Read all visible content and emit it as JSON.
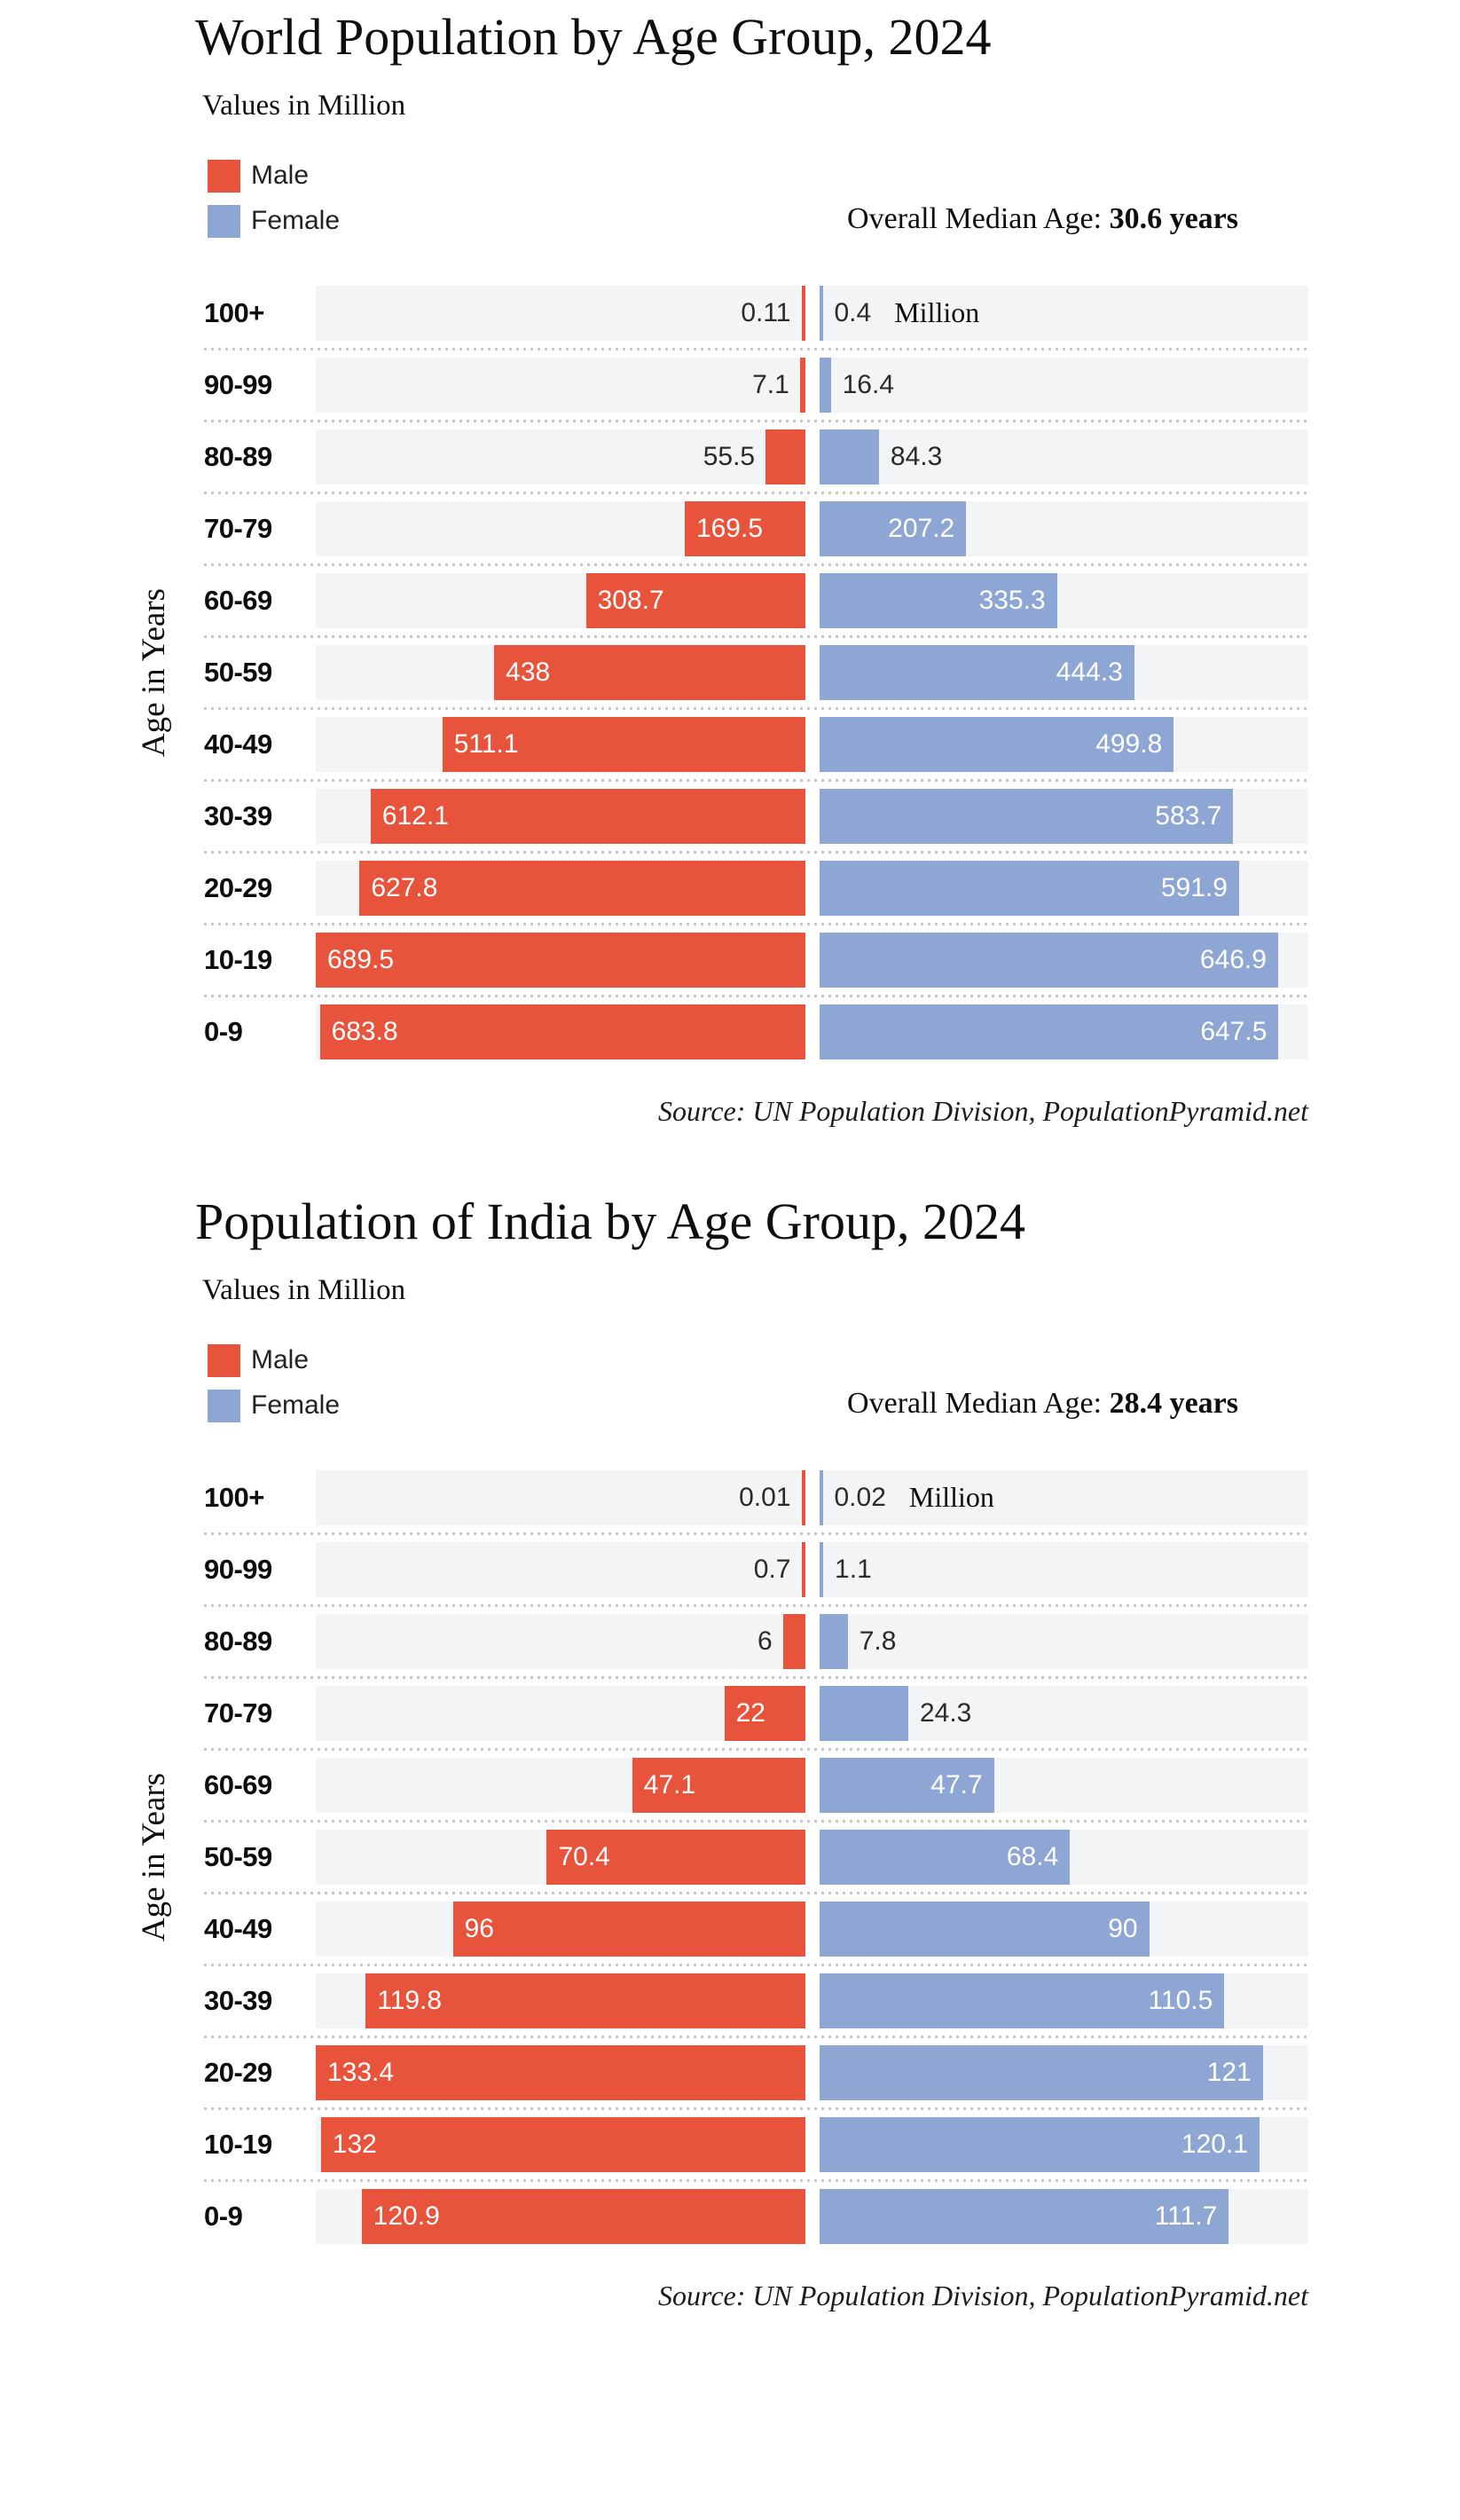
{
  "chart_data": [
    {
      "type": "bar",
      "variant": "population-pyramid",
      "title": "World Population by Age Group, 2024",
      "subtitle": "Values in Million",
      "ylabel": "Age in Years",
      "unit": "Million",
      "median_prefix": "Overall Median Age: ",
      "median_value": "30.6 years",
      "source": "Source: UN Population Division, PopulationPyramid.net",
      "legend_position": "top-left",
      "grid": false,
      "xmax": 689.5,
      "track_color": "#f3f4f5",
      "categories": [
        "100+",
        "90-99",
        "80-89",
        "70-79",
        "60-69",
        "50-59",
        "40-49",
        "30-39",
        "20-29",
        "10-19",
        "0-9"
      ],
      "series": [
        {
          "name": "Male",
          "color": "#e8533b",
          "values": [
            0.11,
            7.1,
            55.5,
            169.5,
            308.7,
            438,
            511.1,
            612.1,
            627.8,
            689.5,
            683.8
          ],
          "labels": [
            "0.11",
            "7.1",
            "55.5",
            "169.5",
            "308.7",
            "438",
            "511.1",
            "612.1",
            "627.8",
            "689.5",
            "683.8"
          ],
          "label_inside": [
            false,
            false,
            false,
            true,
            true,
            true,
            true,
            true,
            true,
            true,
            true
          ]
        },
        {
          "name": "Female",
          "color": "#8ea6d3",
          "values": [
            0.4,
            16.4,
            84.3,
            207.2,
            335.3,
            444.3,
            499.8,
            583.7,
            591.9,
            646.9,
            647.5
          ],
          "labels": [
            "0.4",
            "16.4",
            "84.3",
            "207.2",
            "335.3",
            "444.3",
            "499.8",
            "583.7",
            "591.9",
            "646.9",
            "647.5"
          ],
          "label_inside": [
            false,
            false,
            false,
            true,
            true,
            true,
            true,
            true,
            true,
            true,
            true
          ]
        }
      ]
    },
    {
      "type": "bar",
      "variant": "population-pyramid",
      "title": "Population of India by Age Group, 2024",
      "subtitle": "Values in Million",
      "ylabel": "Age in Years",
      "unit": "Million",
      "median_prefix": "Overall Median Age: ",
      "median_value": "28.4 years",
      "source": "Source: UN Population Division, PopulationPyramid.net",
      "legend_position": "top-left",
      "grid": false,
      "xmax": 133.4,
      "track_color": "#f3f4f5",
      "categories": [
        "100+",
        "90-99",
        "80-89",
        "70-79",
        "60-69",
        "50-59",
        "40-49",
        "30-39",
        "20-29",
        "10-19",
        "0-9"
      ],
      "series": [
        {
          "name": "Male",
          "color": "#e8533b",
          "values": [
            0.01,
            0.7,
            6,
            22,
            47.1,
            70.4,
            96,
            119.8,
            133.4,
            132,
            120.9
          ],
          "labels": [
            "0.01",
            "0.7",
            "6",
            "22",
            "47.1",
            "70.4",
            "96",
            "119.8",
            "133.4",
            "132",
            "120.9"
          ],
          "label_inside": [
            false,
            false,
            false,
            true,
            true,
            true,
            true,
            true,
            true,
            true,
            true
          ]
        },
        {
          "name": "Female",
          "color": "#8ea6d3",
          "values": [
            0.02,
            1.1,
            7.8,
            24.3,
            47.7,
            68.4,
            90,
            110.5,
            121,
            120.1,
            111.7
          ],
          "labels": [
            "0.02",
            "1.1",
            "7.8",
            "24.3",
            "47.7",
            "68.4",
            "90",
            "110.5",
            "121",
            "120.1",
            "111.7"
          ],
          "label_inside": [
            false,
            false,
            false,
            false,
            true,
            true,
            true,
            true,
            true,
            true,
            true
          ]
        }
      ]
    }
  ]
}
